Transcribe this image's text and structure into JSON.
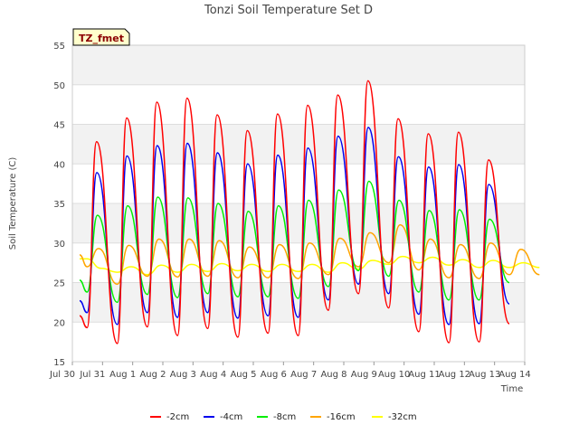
{
  "chart_data": {
    "type": "line",
    "title": "Tonzi Soil Temperature Set D",
    "xlabel": "Time",
    "ylabel": "Soil Temperature (C)",
    "ylim": [
      15,
      55
    ],
    "xlim": [
      "Jul 30",
      "Aug 14"
    ],
    "yticks": [
      15,
      20,
      25,
      30,
      35,
      40,
      45,
      50,
      55
    ],
    "xticks": [
      "Jul 30",
      "Jul 31",
      "Aug 1",
      "Aug 2",
      "Aug 3",
      "Aug 4",
      "Aug 5",
      "Aug 6",
      "Aug 7",
      "Aug 8",
      "Aug 9",
      "Aug 10",
      "Aug 11",
      "Aug 12",
      "Aug 13",
      "Aug 14"
    ],
    "grid": true,
    "legend_position": "bottom",
    "tag": "TZ_fmet",
    "series": [
      {
        "name": "-2cm",
        "color": "#ff0000",
        "daily_max": [
          42.8,
          45.8,
          47.8,
          48.3,
          46.2,
          44.2,
          46.3,
          47.4,
          48.7,
          50.5,
          45.7,
          43.8,
          44.0,
          40.5
        ],
        "daily_min": [
          19.3,
          17.3,
          19.4,
          18.3,
          19.2,
          18.1,
          18.6,
          18.3,
          21.5,
          23.6,
          21.8,
          18.8,
          17.4,
          17.5,
          19.8
        ]
      },
      {
        "name": "-4cm",
        "color": "#0000ee",
        "daily_max": [
          38.9,
          41.0,
          42.3,
          42.6,
          41.4,
          40.0,
          41.1,
          42.0,
          43.5,
          44.6,
          40.9,
          39.6,
          39.9,
          37.4
        ],
        "daily_min": [
          21.2,
          19.7,
          21.2,
          20.6,
          21.2,
          20.5,
          20.8,
          20.6,
          22.8,
          24.8,
          23.6,
          21.0,
          19.7,
          19.8,
          22.3
        ]
      },
      {
        "name": "-8cm",
        "color": "#00ee00",
        "daily_max": [
          33.5,
          34.7,
          35.8,
          35.7,
          35.0,
          34.0,
          34.7,
          35.4,
          36.7,
          37.8,
          35.4,
          34.1,
          34.2,
          33.0
        ],
        "daily_min": [
          23.8,
          22.5,
          23.5,
          23.1,
          23.6,
          23.2,
          23.2,
          23.0,
          24.5,
          26.5,
          25.8,
          23.8,
          22.8,
          22.8,
          25.0
        ]
      },
      {
        "name": "-16cm",
        "color": "#ffa500",
        "daily_max": [
          29.3,
          29.7,
          30.5,
          30.5,
          30.3,
          29.5,
          29.8,
          30.0,
          30.6,
          31.3,
          32.3,
          30.5,
          29.8,
          30.0,
          29.2
        ],
        "daily_min": [
          27.0,
          24.8,
          25.8,
          25.7,
          25.8,
          25.6,
          25.6,
          25.5,
          26.0,
          27.0,
          27.5,
          26.6,
          25.6,
          25.5,
          26.0
        ]
      },
      {
        "name": "-32cm",
        "color": "#ffff00",
        "daily_max": [
          26.8,
          27.0,
          27.2,
          27.3,
          27.4,
          27.3,
          27.3,
          27.3,
          27.5,
          27.8,
          28.3,
          28.2,
          27.9,
          27.8,
          27.5
        ],
        "daily_min": [
          28.0,
          26.3,
          26.0,
          26.3,
          26.4,
          26.5,
          26.4,
          26.4,
          26.3,
          26.7,
          27.3,
          27.5,
          27.2,
          26.9,
          26.9
        ]
      }
    ]
  }
}
